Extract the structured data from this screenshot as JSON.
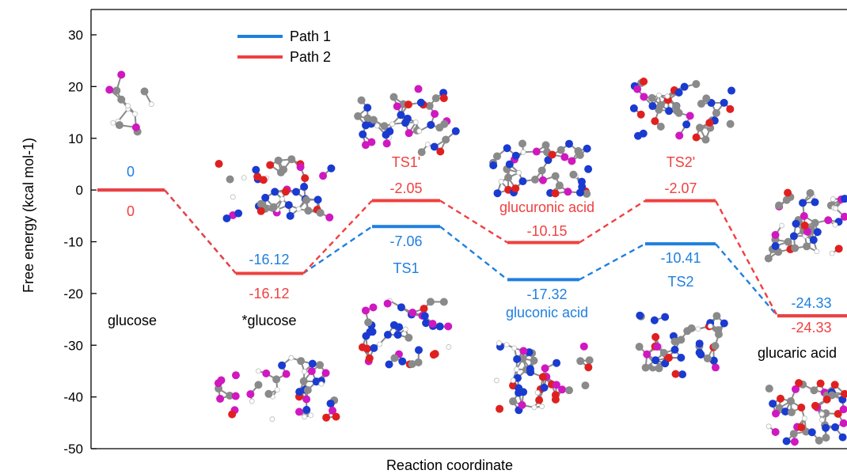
{
  "chart_data": {
    "type": "energy-diagram",
    "xlabel": "Reaction coordinate",
    "ylabel": "Free energy (kcal mol-1)",
    "ylim": [
      -50,
      35
    ],
    "yticks": [
      30,
      20,
      10,
      0,
      -10,
      -20,
      -30,
      -40,
      -50
    ],
    "legend": {
      "placement": "top-left",
      "entries": [
        {
          "name": "Path 1",
          "color": "#1f7fe0"
        },
        {
          "name": "Path 2",
          "color": "#f04040"
        }
      ]
    },
    "series": [
      {
        "name": "Path 1",
        "color": "#1f7fe0",
        "values": [
          0,
          -16.12,
          -7.06,
          -17.32,
          -10.41,
          -24.33
        ]
      },
      {
        "name": "Path 2",
        "color": "#f04040",
        "values": [
          0,
          -16.12,
          -2.05,
          -10.15,
          -2.07,
          -24.33
        ]
      }
    ],
    "value_labels": {
      "path1": [
        "0",
        "-16.12",
        "-7.06",
        "-17.32",
        "-10.41",
        "-24.33"
      ],
      "path2": [
        "0",
        "-16.12",
        "-2.05",
        "-10.15",
        "-2.07",
        "-24.33"
      ]
    },
    "state_labels": {
      "glucose": "glucose",
      "star_glucose": "*glucose",
      "ts1": "TS1",
      "ts1p": "TS1'",
      "gluconic": "gluconic acid",
      "glucuronic": "glucuronic acid",
      "ts2": "TS2",
      "ts2p": "TS2'",
      "glucaric": "glucaric acid"
    }
  }
}
